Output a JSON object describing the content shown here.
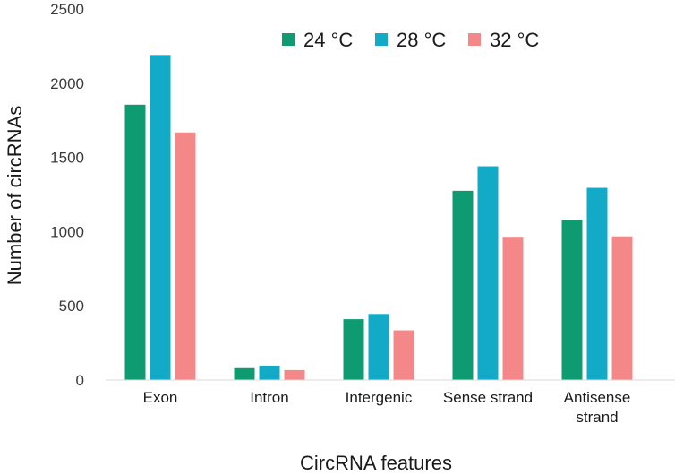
{
  "chart_data": {
    "type": "bar",
    "title": "",
    "xlabel": "CircRNA features",
    "ylabel": "Number of circRNAs",
    "ylim": [
      0,
      2500
    ],
    "yticks": [
      0,
      500,
      1000,
      1500,
      2000,
      2500
    ],
    "grid": false,
    "legend_position": "top-right",
    "categories": [
      [
        "Exon"
      ],
      [
        "Intron"
      ],
      [
        "Intergenic"
      ],
      [
        "Sense strand"
      ],
      [
        "Antisense",
        "strand"
      ]
    ],
    "series": [
      {
        "name": "24 °C",
        "color": "#0f9b72",
        "values": [
          1855,
          80,
          410,
          1275,
          1075
        ]
      },
      {
        "name": "28 °C",
        "color": "#12aac6",
        "values": [
          2190,
          97,
          445,
          1440,
          1295
        ]
      },
      {
        "name": "32 °C",
        "color": "#f48889",
        "values": [
          1668,
          67,
          335,
          965,
          968
        ]
      }
    ]
  }
}
